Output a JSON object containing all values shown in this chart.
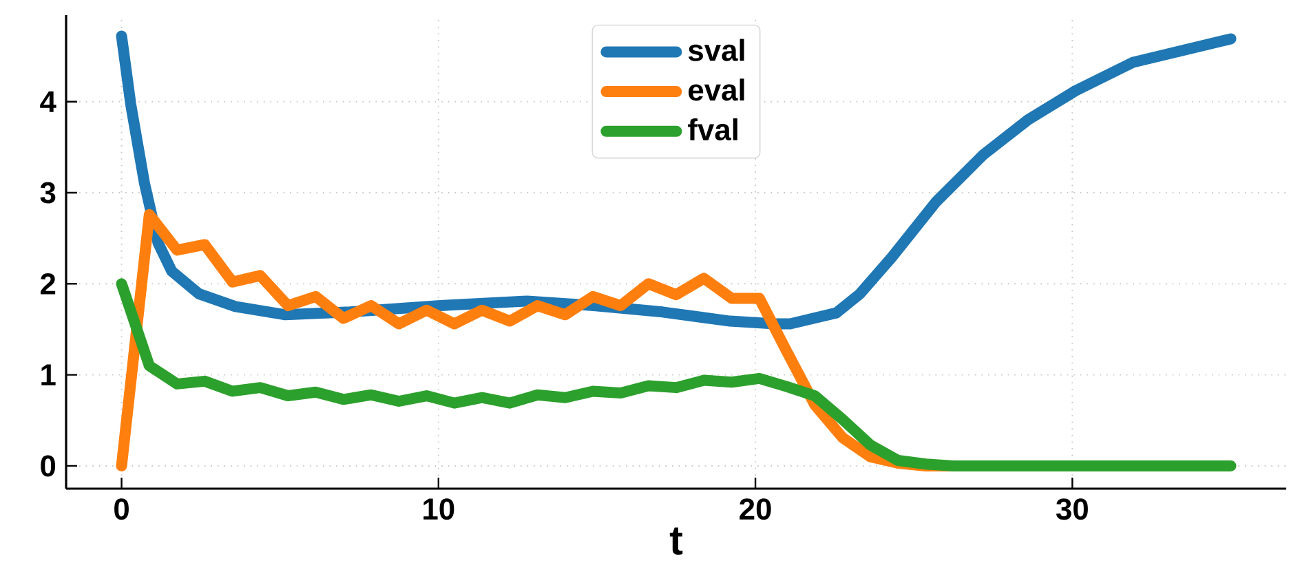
{
  "chart_data": {
    "type": "line",
    "xlabel": "t",
    "x": [
      0,
      0.875,
      1.75,
      2.625,
      3.5,
      4.375,
      5.25,
      6.125,
      7,
      7.875,
      8.75,
      9.625,
      10.5,
      11.375,
      12.25,
      13.125,
      14,
      14.875,
      15.75,
      16.625,
      17.5,
      18.375,
      19.25,
      20.125,
      21,
      21.875,
      22.75,
      23.625,
      24.5,
      25.375,
      26.25,
      27.125,
      28,
      28.875,
      29.75,
      30.625,
      31.5,
      32.375,
      33.25,
      34.125,
      35
    ],
    "series": [
      {
        "name": "sval",
        "color": "#1f77b4",
        "x": [
          0,
          0.29,
          0.72,
          1.15,
          1.58,
          2.44,
          3.59,
          5.17,
          7.2,
          10.06,
          12.8,
          14.9,
          17.07,
          19.2,
          20.6,
          21.1,
          22.55,
          23.3,
          24.3,
          25.7,
          27.2,
          28.6,
          30.1,
          31.9,
          35
        ],
        "values": [
          4.72,
          3.97,
          3.11,
          2.45,
          2.14,
          1.89,
          1.75,
          1.66,
          1.69,
          1.76,
          1.81,
          1.76,
          1.69,
          1.59,
          1.56,
          1.56,
          1.68,
          1.89,
          2.29,
          2.9,
          3.42,
          3.8,
          4.12,
          4.43,
          4.69
        ]
      },
      {
        "name": "eval",
        "color": "#ff7f0e",
        "values": [
          0,
          2.76,
          2.37,
          2.43,
          2.02,
          2.09,
          1.76,
          1.86,
          1.62,
          1.76,
          1.56,
          1.71,
          1.56,
          1.71,
          1.59,
          1.76,
          1.66,
          1.86,
          1.76,
          2.0,
          1.88,
          2.06,
          1.84,
          1.84,
          1.25,
          0.67,
          0.31,
          0.1,
          0.03,
          0,
          0,
          0,
          null,
          null,
          null,
          null,
          null,
          null,
          null,
          null,
          null
        ]
      },
      {
        "name": "fval",
        "color": "#2ca02c",
        "values": [
          2.0,
          1.1,
          0.9,
          0.93,
          0.82,
          0.86,
          0.77,
          0.81,
          0.73,
          0.78,
          0.71,
          0.77,
          0.69,
          0.75,
          0.69,
          0.78,
          0.75,
          0.82,
          0.8,
          0.88,
          0.86,
          0.94,
          0.92,
          0.96,
          0.87,
          0.77,
          0.51,
          0.23,
          0.06,
          0.02,
          0,
          0,
          0,
          0,
          0,
          0,
          0,
          0,
          0,
          0,
          0
        ]
      }
    ],
    "xlim": [
      -1.75,
      36.75
    ],
    "ylim": [
      -0.25,
      4.95
    ],
    "xticks": [
      0,
      10,
      20,
      30
    ],
    "yticks": [
      0,
      1,
      2,
      3,
      4
    ],
    "grid": true,
    "legend": "top",
    "line_style": "solid"
  }
}
